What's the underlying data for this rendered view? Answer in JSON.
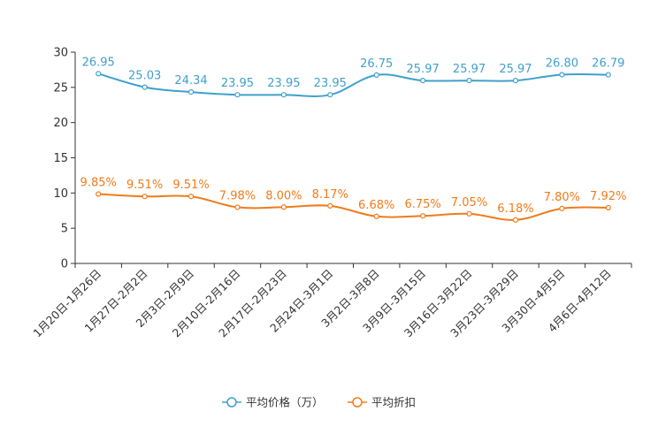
{
  "chart_data": {
    "type": "line",
    "title": "",
    "xlabel": "",
    "ylabel": "",
    "ylim": [
      0,
      30
    ],
    "yticks": [
      "0",
      "5",
      "10",
      "15",
      "20",
      "25",
      "30"
    ],
    "grid": false,
    "legend_position": "bottom",
    "categories": [
      "1月20日-1月26日",
      "1月27日-2月2日",
      "2月3日-2月9日",
      "2月10日-2月16日",
      "2月17日-2月23日",
      "2月24日-3月1日",
      "3月2日-3月8日",
      "3月9日-3月15日",
      "3月16日-3月22日",
      "3月23日-3月29日",
      "3月30日-4月5日",
      "4月6日-4月12日"
    ],
    "series": [
      {
        "name": "平均价格（万）",
        "color": "#3fa0cc",
        "values": [
          26.95,
          25.03,
          24.34,
          23.95,
          23.95,
          23.95,
          26.75,
          25.97,
          25.97,
          25.97,
          26.8,
          26.79
        ],
        "labels": [
          "26.95",
          "25.03",
          "24.34",
          "23.95",
          "23.95",
          "23.95",
          "26.75",
          "25.97",
          "25.97",
          "25.97",
          "26.80",
          "26.79"
        ]
      },
      {
        "name": "平均折扣",
        "color": "#f07b1a",
        "values": [
          9.85,
          9.51,
          9.51,
          7.98,
          8.0,
          8.17,
          6.68,
          6.75,
          7.05,
          6.18,
          7.8,
          7.92
        ],
        "labels": [
          "9.85%",
          "9.51%",
          "9.51%",
          "7.98%",
          "8.00%",
          "8.17%",
          "6.68%",
          "6.75%",
          "7.05%",
          "6.18%",
          "7.80%",
          "7.92%"
        ]
      }
    ]
  }
}
